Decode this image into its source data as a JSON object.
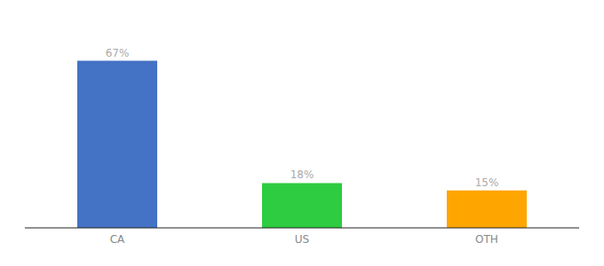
{
  "chart_data": {
    "type": "bar",
    "categories": [
      "CA",
      "US",
      "OTH"
    ],
    "values": [
      67,
      18,
      15
    ],
    "value_labels": [
      "67%",
      "18%",
      "15%"
    ],
    "colors": [
      "#4472C4",
      "#2ECC40",
      "#FFA500"
    ],
    "ylim": [
      0,
      80
    ],
    "data_labels": true,
    "tick_labels": "x",
    "grid": false
  }
}
